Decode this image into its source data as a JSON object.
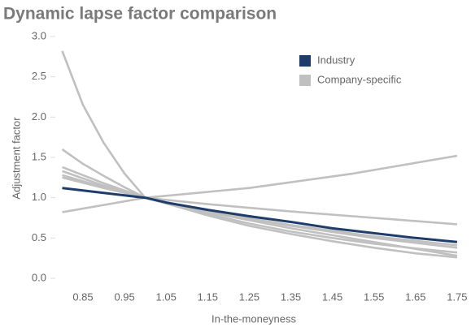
{
  "chart_data": {
    "type": "line",
    "title": "Dynamic lapse factor comparison",
    "x_label": "In-the-moneyness",
    "y_label": "Adjustment factor",
    "xlim": [
      0.8,
      1.76
    ],
    "ylim": [
      0,
      3
    ],
    "xticks": [
      0.85,
      0.95,
      1.05,
      1.15,
      1.25,
      1.35,
      1.45,
      1.55,
      1.65,
      1.75
    ],
    "yticks": [
      {
        "value": 0,
        "label": "0.0"
      },
      0.5,
      {
        "value": 1,
        "label": "1.0"
      },
      1.5,
      {
        "value": 2,
        "label": "2.0"
      },
      2.5,
      {
        "value": 3,
        "label": "3.0"
      }
    ],
    "series": [
      {
        "color": "#c0c0c0",
        "x": [
          0.8,
          0.85,
          0.9,
          0.95,
          1.0,
          1.05,
          1.15,
          1.25,
          1.35,
          1.45,
          1.55,
          1.65,
          1.75
        ],
        "values": [
          2.82,
          2.15,
          1.68,
          1.3,
          1.0,
          0.93,
          0.78,
          0.65,
          0.55,
          0.46,
          0.38,
          0.31,
          0.26
        ]
      },
      {
        "color": "#c0c0c0",
        "x": [
          0.8,
          0.85,
          0.9,
          0.95,
          1.0,
          1.05,
          1.15,
          1.25,
          1.35,
          1.45,
          1.55,
          1.65,
          1.75
        ],
        "values": [
          1.6,
          1.42,
          1.27,
          1.13,
          1.0,
          0.93,
          0.8,
          0.68,
          0.58,
          0.5,
          0.43,
          0.37,
          0.32
        ]
      },
      {
        "color": "#c0c0c0",
        "x": [
          0.8,
          0.9,
          1.0,
          1.25,
          1.5,
          1.75
        ],
        "values": [
          0.82,
          0.91,
          1.0,
          1.12,
          1.3,
          1.52
        ]
      },
      {
        "color": "#c0c0c0",
        "x": [
          0.8,
          0.9,
          1.0,
          1.15,
          1.35,
          1.55,
          1.75
        ],
        "values": [
          1.38,
          1.18,
          1.0,
          0.92,
          0.83,
          0.75,
          0.67
        ]
      },
      {
        "color": "#c0c0c0",
        "x": [
          0.8,
          0.9,
          1.0,
          1.15,
          1.35,
          1.55,
          1.75
        ],
        "values": [
          1.33,
          1.15,
          1.0,
          0.83,
          0.65,
          0.5,
          0.38
        ]
      },
      {
        "color": "#c0c0c0",
        "x": [
          0.8,
          0.9,
          1.0,
          1.15,
          1.35,
          1.55,
          1.75
        ],
        "values": [
          1.28,
          1.13,
          1.0,
          0.82,
          0.62,
          0.45,
          0.28
        ]
      },
      {
        "name": "Company-specific",
        "color": "#c0c0c0",
        "x": [
          0.8,
          0.9,
          1.0,
          1.15,
          1.35,
          1.55,
          1.75
        ],
        "values": [
          1.25,
          1.12,
          1.0,
          0.83,
          0.66,
          0.52,
          0.41
        ]
      },
      {
        "name": "Industry",
        "color": "#1f3d6b",
        "x": [
          0.8,
          0.9,
          1.0,
          1.05,
          1.15,
          1.25,
          1.35,
          1.45,
          1.55,
          1.65,
          1.75
        ],
        "values": [
          1.12,
          1.06,
          1.0,
          0.94,
          0.85,
          0.77,
          0.7,
          0.62,
          0.56,
          0.5,
          0.45
        ]
      }
    ]
  }
}
